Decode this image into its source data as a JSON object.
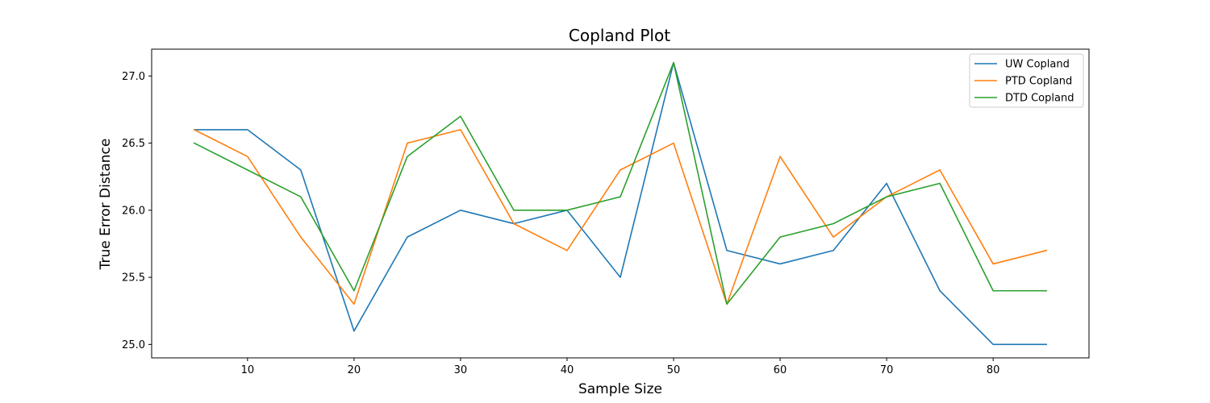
{
  "chart_data": {
    "type": "line",
    "title": "Copland Plot",
    "xlabel": "Sample Size",
    "ylabel": "True Error Distance",
    "x": [
      5,
      10,
      15,
      20,
      25,
      30,
      35,
      40,
      45,
      50,
      55,
      60,
      65,
      70,
      75,
      80,
      85
    ],
    "xlim": [
      1,
      89
    ],
    "ylim": [
      24.9,
      27.2
    ],
    "xticks": [
      10,
      20,
      30,
      40,
      50,
      60,
      70,
      80
    ],
    "yticks": [
      25.0,
      25.5,
      26.0,
      26.5,
      27.0
    ],
    "xtick_labels": [
      "10",
      "20",
      "30",
      "40",
      "50",
      "60",
      "70",
      "80"
    ],
    "ytick_labels": [
      "25.0",
      "25.5",
      "26.0",
      "26.5",
      "27.0"
    ],
    "grid": false,
    "legend_position": "top-right",
    "series": [
      {
        "name": "UW Copland",
        "color": "#1f77b4",
        "values": [
          26.6,
          26.6,
          26.3,
          25.1,
          25.8,
          26.0,
          25.9,
          26.0,
          25.5,
          27.1,
          25.7,
          25.6,
          25.7,
          26.2,
          25.4,
          25.0,
          25.0
        ]
      },
      {
        "name": "PTD Copland",
        "color": "#ff7f0e",
        "values": [
          26.6,
          26.4,
          25.8,
          25.3,
          26.5,
          26.6,
          25.9,
          25.7,
          26.3,
          26.5,
          25.3,
          26.4,
          25.8,
          26.1,
          26.3,
          25.6,
          25.7
        ]
      },
      {
        "name": "DTD Copland",
        "color": "#2ca02c",
        "values": [
          26.5,
          26.3,
          26.1,
          25.4,
          26.4,
          26.7,
          26.0,
          26.0,
          26.1,
          27.1,
          25.3,
          25.8,
          25.9,
          26.1,
          26.2,
          25.4,
          25.4
        ]
      }
    ]
  }
}
